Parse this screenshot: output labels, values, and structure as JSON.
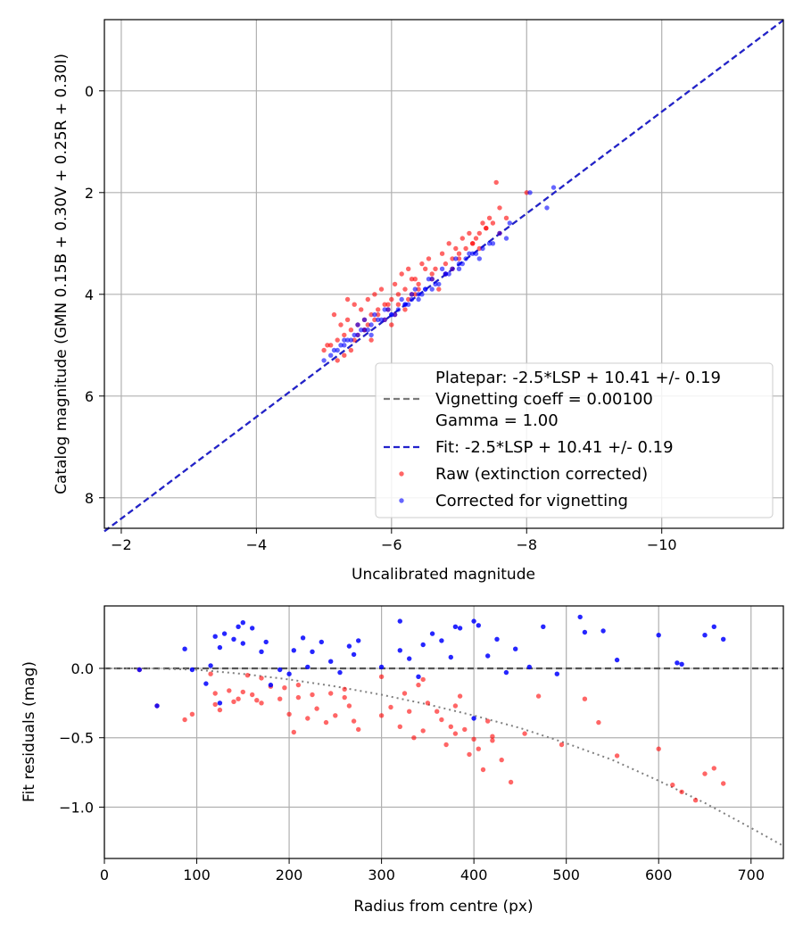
{
  "colors": {
    "raw": "#ff0000",
    "corrected": "#0000ff",
    "fit_line": "#2222cc",
    "platepar_line": "#7a7a7a",
    "grid": "#b0b0b0",
    "model_curve": "#808080"
  },
  "chart_data": [
    {
      "type": "scatter",
      "title": "",
      "xlabel": "Uncalibrated magnitude",
      "ylabel": "Catalog magnitude (GMN 0.15B + 0.30V + 0.25R + 0.30I)",
      "xlim": [
        -1.75,
        -11.8
      ],
      "ylim": [
        8.6,
        -1.4
      ],
      "x_ticks": [
        -2,
        -4,
        -6,
        -8,
        -10
      ],
      "x_tick_labels": [
        "−2",
        "−4",
        "−6",
        "−8",
        "−10"
      ],
      "y_ticks": [
        0,
        2,
        4,
        6,
        8
      ],
      "y_tick_labels": [
        "0",
        "2",
        "4",
        "6",
        "8"
      ],
      "grid": true,
      "legend_position": "lower-right",
      "legend": [
        {
          "label": "Platepar: -2.5*LSP + 10.41 +/- 0.19",
          "kind": "none"
        },
        {
          "label": "Vignetting coeff = 0.00100",
          "kind": "gray-dash"
        },
        {
          "label": "Gamma = 1.00",
          "kind": "none"
        },
        {
          "label": "Fit: -2.5*LSP + 10.41 +/- 0.19",
          "kind": "blue-dash"
        },
        {
          "label": "Raw (extinction corrected)",
          "kind": "red-dot"
        },
        {
          "label": "Corrected for vignetting",
          "kind": "blue-dot"
        }
      ],
      "lines": [
        {
          "name": "platepar",
          "x": [
            -1.75,
            -11.8
          ],
          "y": [
            8.66,
            -1.39
          ]
        },
        {
          "name": "fit",
          "x": [
            -1.75,
            -11.8
          ],
          "y": [
            8.66,
            -1.39
          ]
        }
      ],
      "series": [
        {
          "name": "Raw (extinction corrected)",
          "x": [
            -7.55,
            -8.0,
            -7.7,
            -7.6,
            -7.4,
            -7.3,
            -7.5,
            -7.2,
            -7.1,
            -6.9,
            -7.0,
            -6.8,
            -6.6,
            -6.5,
            -6.4,
            -6.3,
            -6.2,
            -6.1,
            -6.0,
            -5.9,
            -5.8,
            -5.7,
            -5.6,
            -5.5,
            -5.4,
            -5.3,
            -5.2,
            -5.1,
            -5.0,
            -5.15,
            -5.25,
            -5.35,
            -5.45,
            -5.55,
            -5.65,
            -5.75,
            -5.85,
            -5.95,
            -6.05,
            -6.15,
            -6.25,
            -6.35,
            -6.45,
            -6.55,
            -6.65,
            -6.75,
            -6.85,
            -6.95,
            -7.05,
            -7.15,
            -7.25,
            -7.35,
            -7.45,
            -5.6,
            -5.9,
            -6.2,
            -6.7,
            -7.6,
            -5.2,
            -5.4,
            -5.7,
            -6.0,
            -6.3,
            -6.9,
            -7.2,
            -5.05,
            -5.5,
            -5.8,
            -6.1,
            -6.6,
            -7.0,
            -7.4,
            -5.3,
            -5.6,
            -6.4,
            -5.95,
            -6.25,
            -5.45,
            -5.75,
            -6.05,
            -6.35,
            -6.8,
            -7.3,
            -5.35,
            -5.65
          ],
          "y": [
            1.8,
            2.0,
            2.5,
            2.3,
            2.7,
            2.8,
            2.6,
            3.0,
            3.1,
            3.3,
            3.2,
            3.4,
            3.6,
            3.5,
            3.8,
            3.7,
            3.9,
            4.0,
            4.1,
            4.2,
            4.3,
            4.4,
            4.5,
            4.6,
            4.7,
            4.8,
            4.9,
            5.0,
            5.1,
            4.4,
            4.6,
            4.5,
            4.2,
            4.3,
            4.1,
            4.0,
            3.9,
            4.2,
            3.8,
            3.6,
            3.5,
            3.7,
            3.4,
            3.3,
            3.5,
            3.2,
            3.0,
            3.1,
            2.9,
            2.8,
            2.9,
            2.6,
            2.5,
            4.7,
            4.5,
            4.3,
            3.9,
            2.8,
            5.3,
            5.1,
            4.9,
            4.6,
            4.0,
            3.5,
            3.0,
            5.0,
            4.8,
            4.4,
            4.2,
            3.7,
            3.3,
            2.7,
            5.2,
            4.7,
            3.9,
            4.3,
            4.1,
            4.9,
            4.5,
            4.4,
            4.0,
            3.6,
            3.1,
            4.1,
            4.6
          ]
        },
        {
          "name": "Corrected for vignetting",
          "x": [
            -8.4,
            -8.3,
            -8.05,
            -7.75,
            -7.7,
            -7.5,
            -7.35,
            -7.2,
            -7.1,
            -7.0,
            -6.9,
            -6.8,
            -6.7,
            -6.6,
            -6.5,
            -6.4,
            -6.3,
            -6.2,
            -6.1,
            -6.0,
            -5.9,
            -5.8,
            -5.7,
            -5.6,
            -5.5,
            -5.4,
            -5.3,
            -5.2,
            -5.1,
            -5.0,
            -5.25,
            -5.45,
            -5.65,
            -5.85,
            -6.05,
            -6.25,
            -6.45,
            -6.65,
            -6.85,
            -7.05,
            -7.25,
            -7.45,
            -7.6,
            -5.15,
            -5.35,
            -5.55,
            -5.75,
            -5.95,
            -6.15,
            -6.35,
            -6.55,
            -6.75,
            -6.95,
            -7.15,
            -5.6,
            -5.9,
            -6.2,
            -6.5,
            -6.8,
            -7.3,
            -5.3,
            -5.5,
            -6.0,
            -6.3,
            -6.6,
            -7.0,
            -5.7,
            -6.4
          ],
          "y": [
            1.9,
            2.3,
            2.0,
            2.6,
            2.9,
            3.0,
            3.1,
            3.2,
            3.3,
            3.4,
            3.5,
            3.6,
            3.8,
            3.7,
            3.9,
            4.0,
            4.1,
            4.2,
            4.3,
            4.4,
            4.5,
            4.5,
            4.6,
            4.7,
            4.8,
            4.9,
            5.0,
            5.1,
            5.2,
            5.3,
            5.0,
            4.8,
            4.7,
            4.5,
            4.4,
            4.2,
            4.0,
            3.8,
            3.6,
            3.4,
            3.2,
            3.0,
            2.8,
            5.1,
            4.9,
            4.7,
            4.4,
            4.3,
            4.1,
            3.9,
            3.7,
            3.5,
            3.3,
            3.2,
            4.5,
            4.3,
            4.2,
            3.9,
            3.6,
            3.3,
            4.9,
            4.6,
            4.4,
            4.0,
            3.9,
            3.5,
            4.8,
            4.1
          ]
        }
      ]
    },
    {
      "type": "scatter",
      "title": "",
      "xlabel": "Radius from centre (px)",
      "ylabel": "Fit residuals (mag)",
      "xlim": [
        0,
        735
      ],
      "ylim": [
        -1.37,
        0.45
      ],
      "x_ticks": [
        0,
        100,
        200,
        300,
        400,
        500,
        600,
        700
      ],
      "x_tick_labels": [
        "0",
        "100",
        "200",
        "300",
        "400",
        "500",
        "600",
        "700"
      ],
      "y_ticks": [
        0.0,
        -0.5,
        -1.0
      ],
      "y_tick_labels": [
        "0.0",
        "−0.5",
        "−1.0"
      ],
      "grid": true,
      "lines": [
        {
          "name": "zero-line",
          "x": [
            0,
            735
          ],
          "y": [
            0,
            0
          ]
        },
        {
          "name": "vignetting-model",
          "x": [
            0,
            50,
            100,
            150,
            200,
            250,
            300,
            350,
            400,
            450,
            500,
            550,
            600,
            650,
            700,
            735
          ],
          "y": [
            0,
            0,
            -0.01,
            -0.04,
            -0.08,
            -0.13,
            -0.19,
            -0.26,
            -0.34,
            -0.43,
            -0.54,
            -0.66,
            -0.81,
            -0.97,
            -1.15,
            -1.28
          ]
        }
      ],
      "series": [
        {
          "name": "Raw (extinction corrected)",
          "x": [
            38,
            57,
            87,
            95,
            115,
            120,
            125,
            135,
            145,
            150,
            155,
            160,
            165,
            170,
            180,
            190,
            195,
            200,
            205,
            210,
            220,
            225,
            230,
            240,
            245,
            250,
            260,
            265,
            270,
            275,
            300,
            310,
            320,
            325,
            330,
            335,
            340,
            345,
            350,
            360,
            365,
            370,
            375,
            380,
            385,
            390,
            395,
            400,
            405,
            410,
            415,
            420,
            430,
            440,
            455,
            470,
            495,
            520,
            535,
            555,
            600,
            615,
            625,
            640,
            650,
            660,
            670,
            120,
            140,
            170,
            210,
            260,
            300,
            345,
            380,
            420
          ],
          "y": [
            -0.01,
            -0.27,
            -0.37,
            -0.33,
            -0.04,
            -0.26,
            -0.3,
            -0.16,
            -0.22,
            -0.17,
            -0.05,
            -0.19,
            -0.23,
            -0.25,
            -0.13,
            -0.22,
            -0.14,
            -0.33,
            -0.46,
            -0.21,
            -0.36,
            -0.19,
            -0.29,
            -0.39,
            -0.18,
            -0.34,
            -0.21,
            -0.27,
            -0.38,
            -0.44,
            -0.06,
            -0.28,
            -0.42,
            -0.18,
            -0.31,
            -0.5,
            -0.12,
            -0.45,
            -0.25,
            -0.31,
            -0.37,
            -0.55,
            -0.42,
            -0.47,
            -0.2,
            -0.44,
            -0.62,
            -0.51,
            -0.58,
            -0.73,
            -0.38,
            -0.49,
            -0.66,
            -0.82,
            -0.47,
            -0.2,
            -0.55,
            -0.22,
            -0.39,
            -0.63,
            -0.58,
            -0.84,
            -0.89,
            -0.95,
            -0.76,
            -0.72,
            -0.83,
            -0.18,
            -0.24,
            -0.07,
            -0.12,
            -0.15,
            -0.34,
            -0.08,
            -0.27,
            -0.52
          ]
        },
        {
          "name": "Corrected for vignetting",
          "x": [
            38,
            57,
            87,
            95,
            110,
            115,
            120,
            125,
            130,
            140,
            145,
            150,
            160,
            170,
            175,
            190,
            200,
            205,
            215,
            225,
            235,
            245,
            255,
            265,
            275,
            300,
            320,
            330,
            345,
            355,
            365,
            375,
            380,
            385,
            400,
            405,
            415,
            425,
            435,
            445,
            460,
            475,
            490,
            515,
            520,
            540,
            555,
            600,
            620,
            625,
            650,
            660,
            670,
            125,
            150,
            180,
            220,
            270,
            320,
            340,
            400
          ],
          "y": [
            -0.01,
            -0.27,
            0.14,
            -0.01,
            -0.11,
            0.02,
            0.23,
            -0.25,
            0.25,
            0.21,
            0.3,
            0.33,
            0.29,
            0.12,
            0.19,
            -0.01,
            -0.04,
            0.13,
            0.22,
            0.12,
            0.19,
            0.05,
            -0.03,
            0.16,
            0.2,
            0.01,
            0.34,
            0.07,
            0.17,
            0.25,
            0.2,
            0.08,
            0.3,
            0.29,
            0.34,
            0.31,
            0.09,
            0.21,
            -0.03,
            0.14,
            0.01,
            0.3,
            -0.04,
            0.37,
            0.26,
            0.27,
            0.06,
            0.24,
            0.04,
            0.03,
            0.24,
            0.3,
            0.21,
            0.15,
            0.18,
            -0.12,
            0.01,
            0.1,
            0.13,
            -0.06,
            -0.36
          ]
        }
      ]
    }
  ]
}
